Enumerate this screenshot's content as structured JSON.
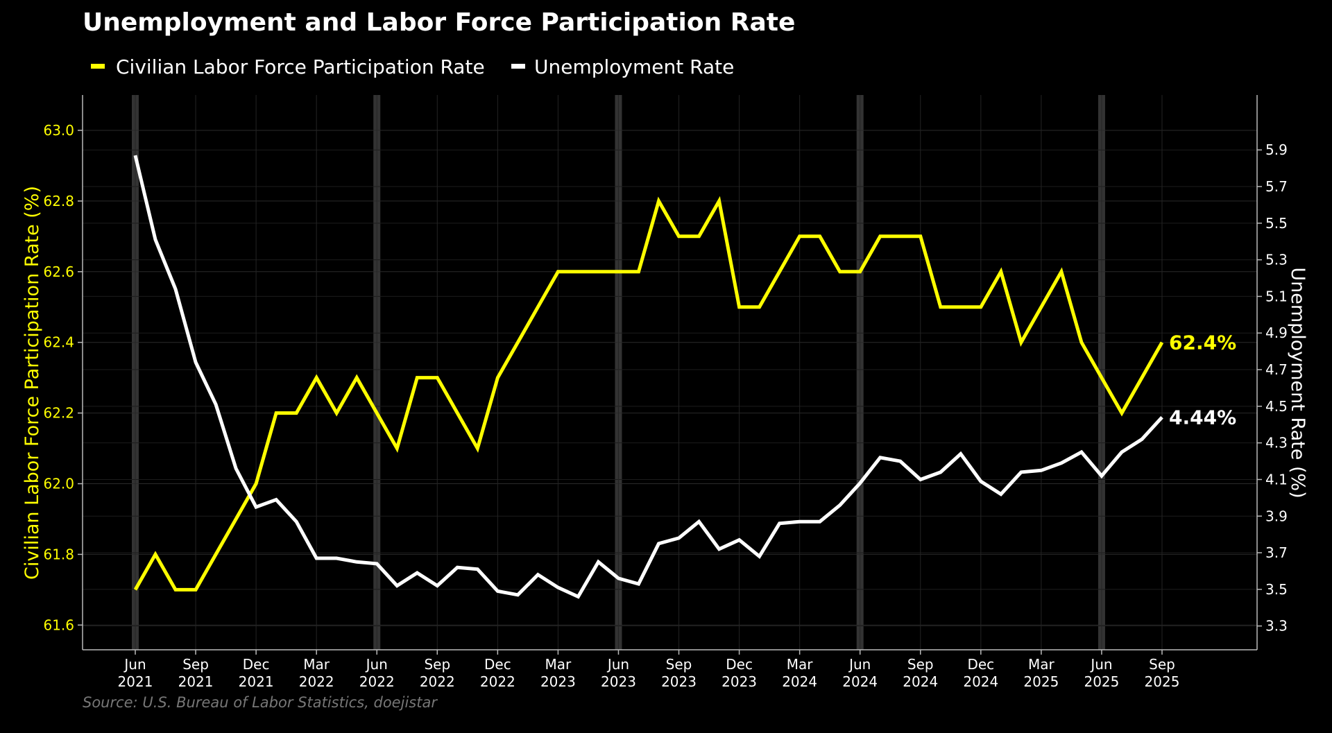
{
  "chart_data": {
    "type": "line",
    "title": "Unemployment and Labor Force Participation Rate",
    "source": "Source: U.S. Bureau of Labor Statistics, doejistar",
    "left_axis": {
      "label": "Civilian Labor Force Participation Rate (%)",
      "ylim": [
        61.53,
        63.1
      ],
      "ticks": [
        "61.6",
        "61.8",
        "62.0",
        "62.2",
        "62.4",
        "62.6",
        "62.8",
        "63.0"
      ]
    },
    "right_axis": {
      "label": "Unemployment Rate (%)",
      "ylim": [
        3.17,
        6.2
      ],
      "ticks": [
        "3.3",
        "3.5",
        "3.7",
        "3.9",
        "4.1",
        "4.3",
        "4.5",
        "4.7",
        "4.9",
        "5.1",
        "5.3",
        "5.5",
        "5.7",
        "5.9"
      ]
    },
    "x_ticks": [
      {
        "month": "Jun",
        "year": "2021",
        "index": 0
      },
      {
        "month": "Sep",
        "year": "2021",
        "index": 3
      },
      {
        "month": "Dec",
        "year": "2021",
        "index": 6
      },
      {
        "month": "Mar",
        "year": "2022",
        "index": 9
      },
      {
        "month": "Jun",
        "year": "2022",
        "index": 12
      },
      {
        "month": "Sep",
        "year": "2022",
        "index": 15
      },
      {
        "month": "Dec",
        "year": "2022",
        "index": 18
      },
      {
        "month": "Mar",
        "year": "2023",
        "index": 21
      },
      {
        "month": "Jun",
        "year": "2023",
        "index": 24
      },
      {
        "month": "Sep",
        "year": "2023",
        "index": 27
      },
      {
        "month": "Dec",
        "year": "2023",
        "index": 30
      },
      {
        "month": "Mar",
        "year": "2024",
        "index": 33
      },
      {
        "month": "Jun",
        "year": "2024",
        "index": 36
      },
      {
        "month": "Sep",
        "year": "2024",
        "index": 39
      },
      {
        "month": "Dec",
        "year": "2024",
        "index": 42
      },
      {
        "month": "Mar",
        "year": "2025",
        "index": 45
      },
      {
        "month": "Jun",
        "year": "2025",
        "index": 48
      },
      {
        "month": "Sep",
        "year": "2025",
        "index": 51
      }
    ],
    "x_max_index": 54.5,
    "highlight_band_indices": [
      0,
      12,
      24,
      36,
      48
    ],
    "grid": true,
    "legend_position": "top-left",
    "series": [
      {
        "name": "Civilian Labor Force Participation Rate",
        "axis": "left",
        "color": "#ffff00",
        "end_label": "62.4%",
        "values": [
          61.7,
          61.8,
          61.7,
          61.7,
          61.8,
          61.9,
          62.0,
          62.2,
          62.2,
          62.3,
          62.2,
          62.3,
          62.2,
          62.1,
          62.3,
          62.3,
          62.2,
          62.1,
          62.3,
          62.4,
          62.5,
          62.6,
          62.6,
          62.6,
          62.6,
          62.6,
          62.8,
          62.7,
          62.7,
          62.8,
          62.5,
          62.5,
          62.6,
          62.7,
          62.7,
          62.6,
          62.6,
          62.7,
          62.7,
          62.7,
          62.5,
          62.5,
          62.5,
          62.6,
          62.4,
          62.5,
          62.6,
          62.4,
          62.3,
          62.2,
          62.3,
          62.4
        ]
      },
      {
        "name": "Unemployment Rate",
        "axis": "right",
        "color": "#ffffff",
        "end_label": "4.44%",
        "values": [
          5.87,
          5.41,
          5.14,
          4.74,
          4.51,
          4.16,
          3.95,
          3.99,
          3.87,
          3.67,
          3.67,
          3.65,
          3.64,
          3.52,
          3.59,
          3.52,
          3.62,
          3.61,
          3.49,
          3.47,
          3.58,
          3.51,
          3.46,
          3.65,
          3.56,
          3.53,
          3.75,
          3.78,
          3.87,
          3.72,
          3.77,
          3.68,
          3.86,
          3.87,
          3.87,
          3.96,
          4.08,
          4.22,
          4.2,
          4.1,
          4.14,
          4.24,
          4.09,
          4.02,
          4.14,
          4.15,
          4.19,
          4.25,
          4.12,
          4.25,
          4.32,
          4.44
        ]
      }
    ]
  }
}
